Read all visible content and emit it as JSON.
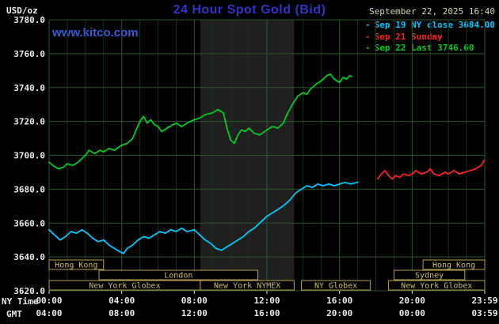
{
  "header": {
    "unit": "USD/oz",
    "title": "24 Hour Spot Gold (Bid)",
    "timestamp": "September 22, 2025 16:40",
    "watermark": "www.kitco.com"
  },
  "legend": {
    "items": [
      {
        "dash": "-",
        "label": "Sep 19 NY close 3684.00",
        "color": "#00c8ff"
      },
      {
        "dash": "-",
        "label": "Sep 21 Sunday",
        "color": "#ff2222"
      },
      {
        "dash": "-",
        "label": "Sep 22 Last 3746.60",
        "color": "#00cc22"
      }
    ]
  },
  "axis": {
    "ny_label": "NY Time",
    "gmt_label": "GMT"
  },
  "chart_data": {
    "type": "line",
    "title": "24 Hour Spot Gold (Bid)",
    "ylabel": "USD/oz",
    "xlabel": "NY Time",
    "x_range": [
      0,
      24
    ],
    "y_range": [
      3620,
      3780
    ],
    "grid": {
      "on": true,
      "minor_color": "#16301b",
      "major_color": "#2e5430"
    },
    "legend_position": "top-right",
    "nymex_band": {
      "start": 8.33,
      "end": 13.5,
      "color": "#1f1f1f"
    },
    "session_box_color": "#b3a24f",
    "y_ticks": [
      {
        "value": 3780,
        "label": "3780.0"
      },
      {
        "value": 3760,
        "label": "3760.0"
      },
      {
        "value": 3740,
        "label": "3740.0"
      },
      {
        "value": 3720,
        "label": "3720.0"
      },
      {
        "value": 3700,
        "label": "3700.0"
      },
      {
        "value": 3680,
        "label": "3680.0"
      },
      {
        "value": 3660,
        "label": "3660.0"
      },
      {
        "value": 3640,
        "label": "3640.0"
      },
      {
        "value": 3620,
        "label": "3620.0"
      }
    ],
    "x_ticks_ny": [
      {
        "hour": 0,
        "label": "00:00"
      },
      {
        "hour": 4,
        "label": "04:00"
      },
      {
        "hour": 8,
        "label": "08:00"
      },
      {
        "hour": 12,
        "label": "12:00"
      },
      {
        "hour": 16,
        "label": "16:00"
      },
      {
        "hour": 20,
        "label": "20:00"
      },
      {
        "hour": 24,
        "label": "23:59"
      }
    ],
    "x_ticks_gmt": [
      {
        "hour": 0,
        "label": "04:00"
      },
      {
        "hour": 4,
        "label": "08:00"
      },
      {
        "hour": 8,
        "label": "12:00"
      },
      {
        "hour": 12,
        "label": "16:00"
      },
      {
        "hour": 16,
        "label": "20:00"
      },
      {
        "hour": 20,
        "label": "00:00"
      },
      {
        "hour": 24,
        "label": "03:59"
      }
    ],
    "sessions": [
      {
        "label": "Hong Kong",
        "row": 0,
        "start": 0,
        "end": 3
      },
      {
        "label": "Hong Kong",
        "row": 0,
        "start": 20.6,
        "end": 24
      },
      {
        "label": "London",
        "row": 1,
        "start": 2.75,
        "end": 11.5
      },
      {
        "label": "Sydney",
        "row": 1,
        "start": 19,
        "end": 22.9
      },
      {
        "label": "New York Globex",
        "row": 2,
        "start": 0,
        "end": 8.33
      },
      {
        "label": "New York NYMEX",
        "row": 2,
        "start": 8.33,
        "end": 13.5
      },
      {
        "label": "NY Globex",
        "row": 2,
        "start": 13.9,
        "end": 17.7
      },
      {
        "label": "New York Globex",
        "row": 2,
        "start": 18.7,
        "end": 24
      }
    ],
    "series": [
      {
        "name": "sep19-ny-close",
        "color": "#00c8ff",
        "last_value": 3684.0,
        "points": [
          [
            0.0,
            3656
          ],
          [
            0.3,
            3653
          ],
          [
            0.6,
            3650
          ],
          [
            0.9,
            3652
          ],
          [
            1.2,
            3655
          ],
          [
            1.5,
            3654
          ],
          [
            1.8,
            3656
          ],
          [
            2.1,
            3654
          ],
          [
            2.4,
            3651
          ],
          [
            2.7,
            3649
          ],
          [
            3.0,
            3650
          ],
          [
            3.3,
            3647
          ],
          [
            3.6,
            3645
          ],
          [
            3.9,
            3643
          ],
          [
            4.1,
            3642
          ],
          [
            4.3,
            3645
          ],
          [
            4.6,
            3647
          ],
          [
            4.9,
            3650
          ],
          [
            5.2,
            3652
          ],
          [
            5.5,
            3651
          ],
          [
            5.8,
            3653
          ],
          [
            6.1,
            3655
          ],
          [
            6.4,
            3654
          ],
          [
            6.7,
            3656
          ],
          [
            7.0,
            3655
          ],
          [
            7.3,
            3657
          ],
          [
            7.6,
            3655
          ],
          [
            8.0,
            3656
          ],
          [
            8.3,
            3653
          ],
          [
            8.6,
            3650
          ],
          [
            8.9,
            3648
          ],
          [
            9.2,
            3645
          ],
          [
            9.5,
            3644
          ],
          [
            9.8,
            3646
          ],
          [
            10.1,
            3648
          ],
          [
            10.4,
            3650
          ],
          [
            10.7,
            3652
          ],
          [
            11.0,
            3655
          ],
          [
            11.3,
            3657
          ],
          [
            11.6,
            3660
          ],
          [
            12.0,
            3664
          ],
          [
            12.3,
            3666
          ],
          [
            12.6,
            3668
          ],
          [
            13.0,
            3671
          ],
          [
            13.3,
            3674
          ],
          [
            13.6,
            3678
          ],
          [
            13.9,
            3680
          ],
          [
            14.2,
            3682
          ],
          [
            14.5,
            3681
          ],
          [
            14.8,
            3683
          ],
          [
            15.1,
            3682
          ],
          [
            15.4,
            3683
          ],
          [
            15.7,
            3682
          ],
          [
            16.0,
            3683
          ],
          [
            16.3,
            3684
          ],
          [
            16.6,
            3683
          ],
          [
            17.0,
            3684
          ]
        ]
      },
      {
        "name": "sep21-sunday",
        "color": "#ff2222",
        "points": [
          [
            18.1,
            3686
          ],
          [
            18.3,
            3689
          ],
          [
            18.5,
            3691
          ],
          [
            18.7,
            3688
          ],
          [
            18.9,
            3686
          ],
          [
            19.1,
            3688
          ],
          [
            19.3,
            3687
          ],
          [
            19.5,
            3689
          ],
          [
            19.8,
            3688
          ],
          [
            20.0,
            3689
          ],
          [
            20.2,
            3691
          ],
          [
            20.5,
            3689
          ],
          [
            20.8,
            3690
          ],
          [
            21.0,
            3692
          ],
          [
            21.2,
            3689
          ],
          [
            21.5,
            3688
          ],
          [
            21.8,
            3690
          ],
          [
            22.0,
            3689
          ],
          [
            22.3,
            3691
          ],
          [
            22.6,
            3689
          ],
          [
            22.9,
            3690
          ],
          [
            23.2,
            3691
          ],
          [
            23.5,
            3692
          ],
          [
            23.8,
            3694
          ],
          [
            23.95,
            3697
          ]
        ]
      },
      {
        "name": "sep22-last",
        "color": "#00cc22",
        "last_value": 3746.6,
        "points": [
          [
            0.0,
            3696
          ],
          [
            0.2,
            3694
          ],
          [
            0.5,
            3692
          ],
          [
            0.8,
            3693
          ],
          [
            1.0,
            3695
          ],
          [
            1.3,
            3694
          ],
          [
            1.6,
            3696
          ],
          [
            2.0,
            3700
          ],
          [
            2.2,
            3703
          ],
          [
            2.5,
            3701
          ],
          [
            2.8,
            3703
          ],
          [
            3.0,
            3702
          ],
          [
            3.3,
            3704
          ],
          [
            3.6,
            3703
          ],
          [
            4.0,
            3706
          ],
          [
            4.3,
            3707
          ],
          [
            4.6,
            3710
          ],
          [
            4.8,
            3715
          ],
          [
            5.0,
            3720
          ],
          [
            5.2,
            3723
          ],
          [
            5.4,
            3719
          ],
          [
            5.6,
            3721
          ],
          [
            5.8,
            3718
          ],
          [
            6.0,
            3717
          ],
          [
            6.2,
            3714
          ],
          [
            6.5,
            3716
          ],
          [
            6.8,
            3718
          ],
          [
            7.0,
            3719
          ],
          [
            7.3,
            3717
          ],
          [
            7.6,
            3719
          ],
          [
            8.0,
            3721
          ],
          [
            8.3,
            3722
          ],
          [
            8.6,
            3724
          ],
          [
            9.0,
            3725
          ],
          [
            9.3,
            3727
          ],
          [
            9.6,
            3725
          ],
          [
            9.8,
            3716
          ],
          [
            10.0,
            3709
          ],
          [
            10.2,
            3707
          ],
          [
            10.4,
            3712
          ],
          [
            10.6,
            3715
          ],
          [
            10.8,
            3714
          ],
          [
            11.0,
            3716
          ],
          [
            11.3,
            3713
          ],
          [
            11.6,
            3712
          ],
          [
            12.0,
            3715
          ],
          [
            12.3,
            3717
          ],
          [
            12.6,
            3716
          ],
          [
            12.9,
            3719
          ],
          [
            13.1,
            3724
          ],
          [
            13.4,
            3730
          ],
          [
            13.7,
            3735
          ],
          [
            14.0,
            3737
          ],
          [
            14.2,
            3736
          ],
          [
            14.4,
            3739
          ],
          [
            14.7,
            3742
          ],
          [
            15.0,
            3744
          ],
          [
            15.3,
            3747
          ],
          [
            15.5,
            3748
          ],
          [
            15.7,
            3745
          ],
          [
            16.0,
            3743
          ],
          [
            16.2,
            3746
          ],
          [
            16.4,
            3745
          ],
          [
            16.55,
            3747
          ],
          [
            16.67,
            3746.6
          ]
        ]
      }
    ]
  }
}
